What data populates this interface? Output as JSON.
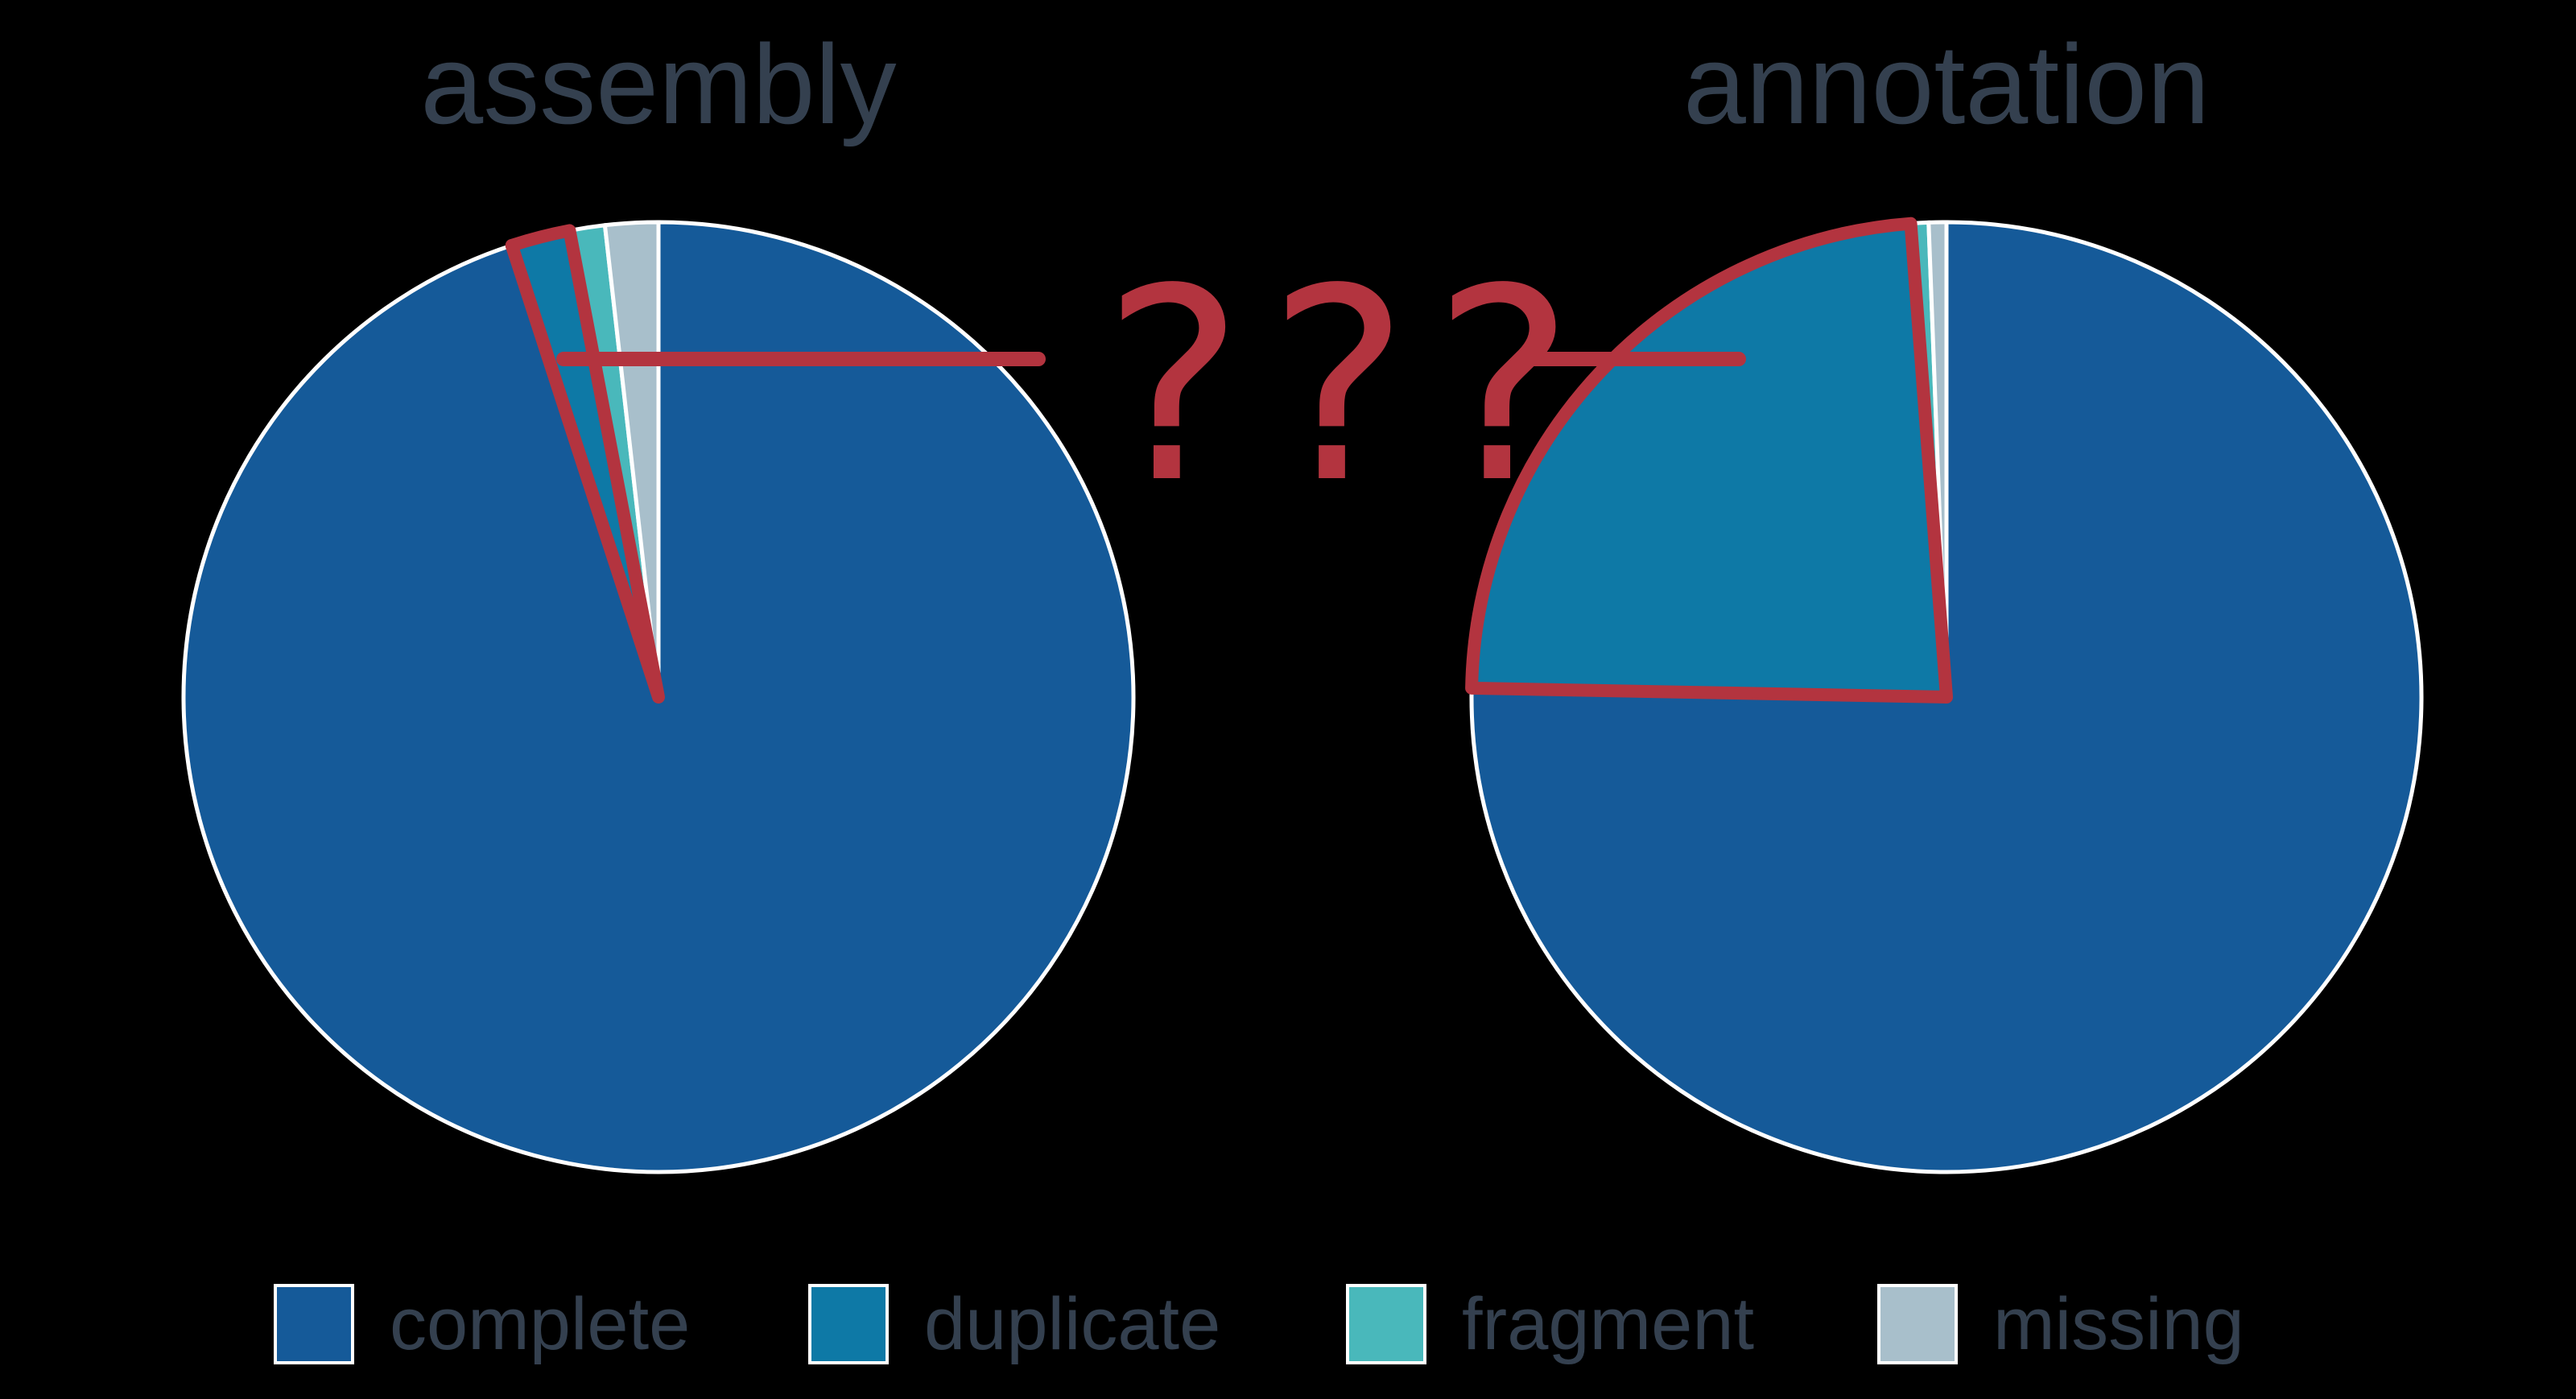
{
  "colors": {
    "background": "#000000",
    "title_text": "#34404f",
    "highlight": "#b3343f",
    "complete": "#155a99",
    "duplicate": "#0e79a6",
    "fragment": "#49b8bb",
    "missing": "#a8bfcb",
    "slice_border": "#ffffff"
  },
  "titles": {
    "left": "assembly",
    "right": "annotation"
  },
  "annotation_text": "???",
  "legend": [
    {
      "label": "complete",
      "color": "#155a99"
    },
    {
      "label": "duplicate",
      "color": "#0e79a6"
    },
    {
      "label": "fragment",
      "color": "#49b8bb"
    },
    {
      "label": "missing",
      "color": "#a8bfcb"
    }
  ],
  "chart_data": [
    {
      "type": "pie",
      "title": "assembly",
      "categories": [
        "complete",
        "duplicate",
        "fragment",
        "missing"
      ],
      "values": [
        95.0,
        2.0,
        1.2,
        1.8
      ],
      "highlighted": "duplicate",
      "legend_position": "bottom"
    },
    {
      "type": "pie",
      "title": "annotation",
      "categories": [
        "complete",
        "duplicate",
        "fragment",
        "missing"
      ],
      "values": [
        75.3,
        23.5,
        0.6,
        0.6
      ],
      "highlighted": "duplicate",
      "legend_position": "bottom"
    }
  ]
}
